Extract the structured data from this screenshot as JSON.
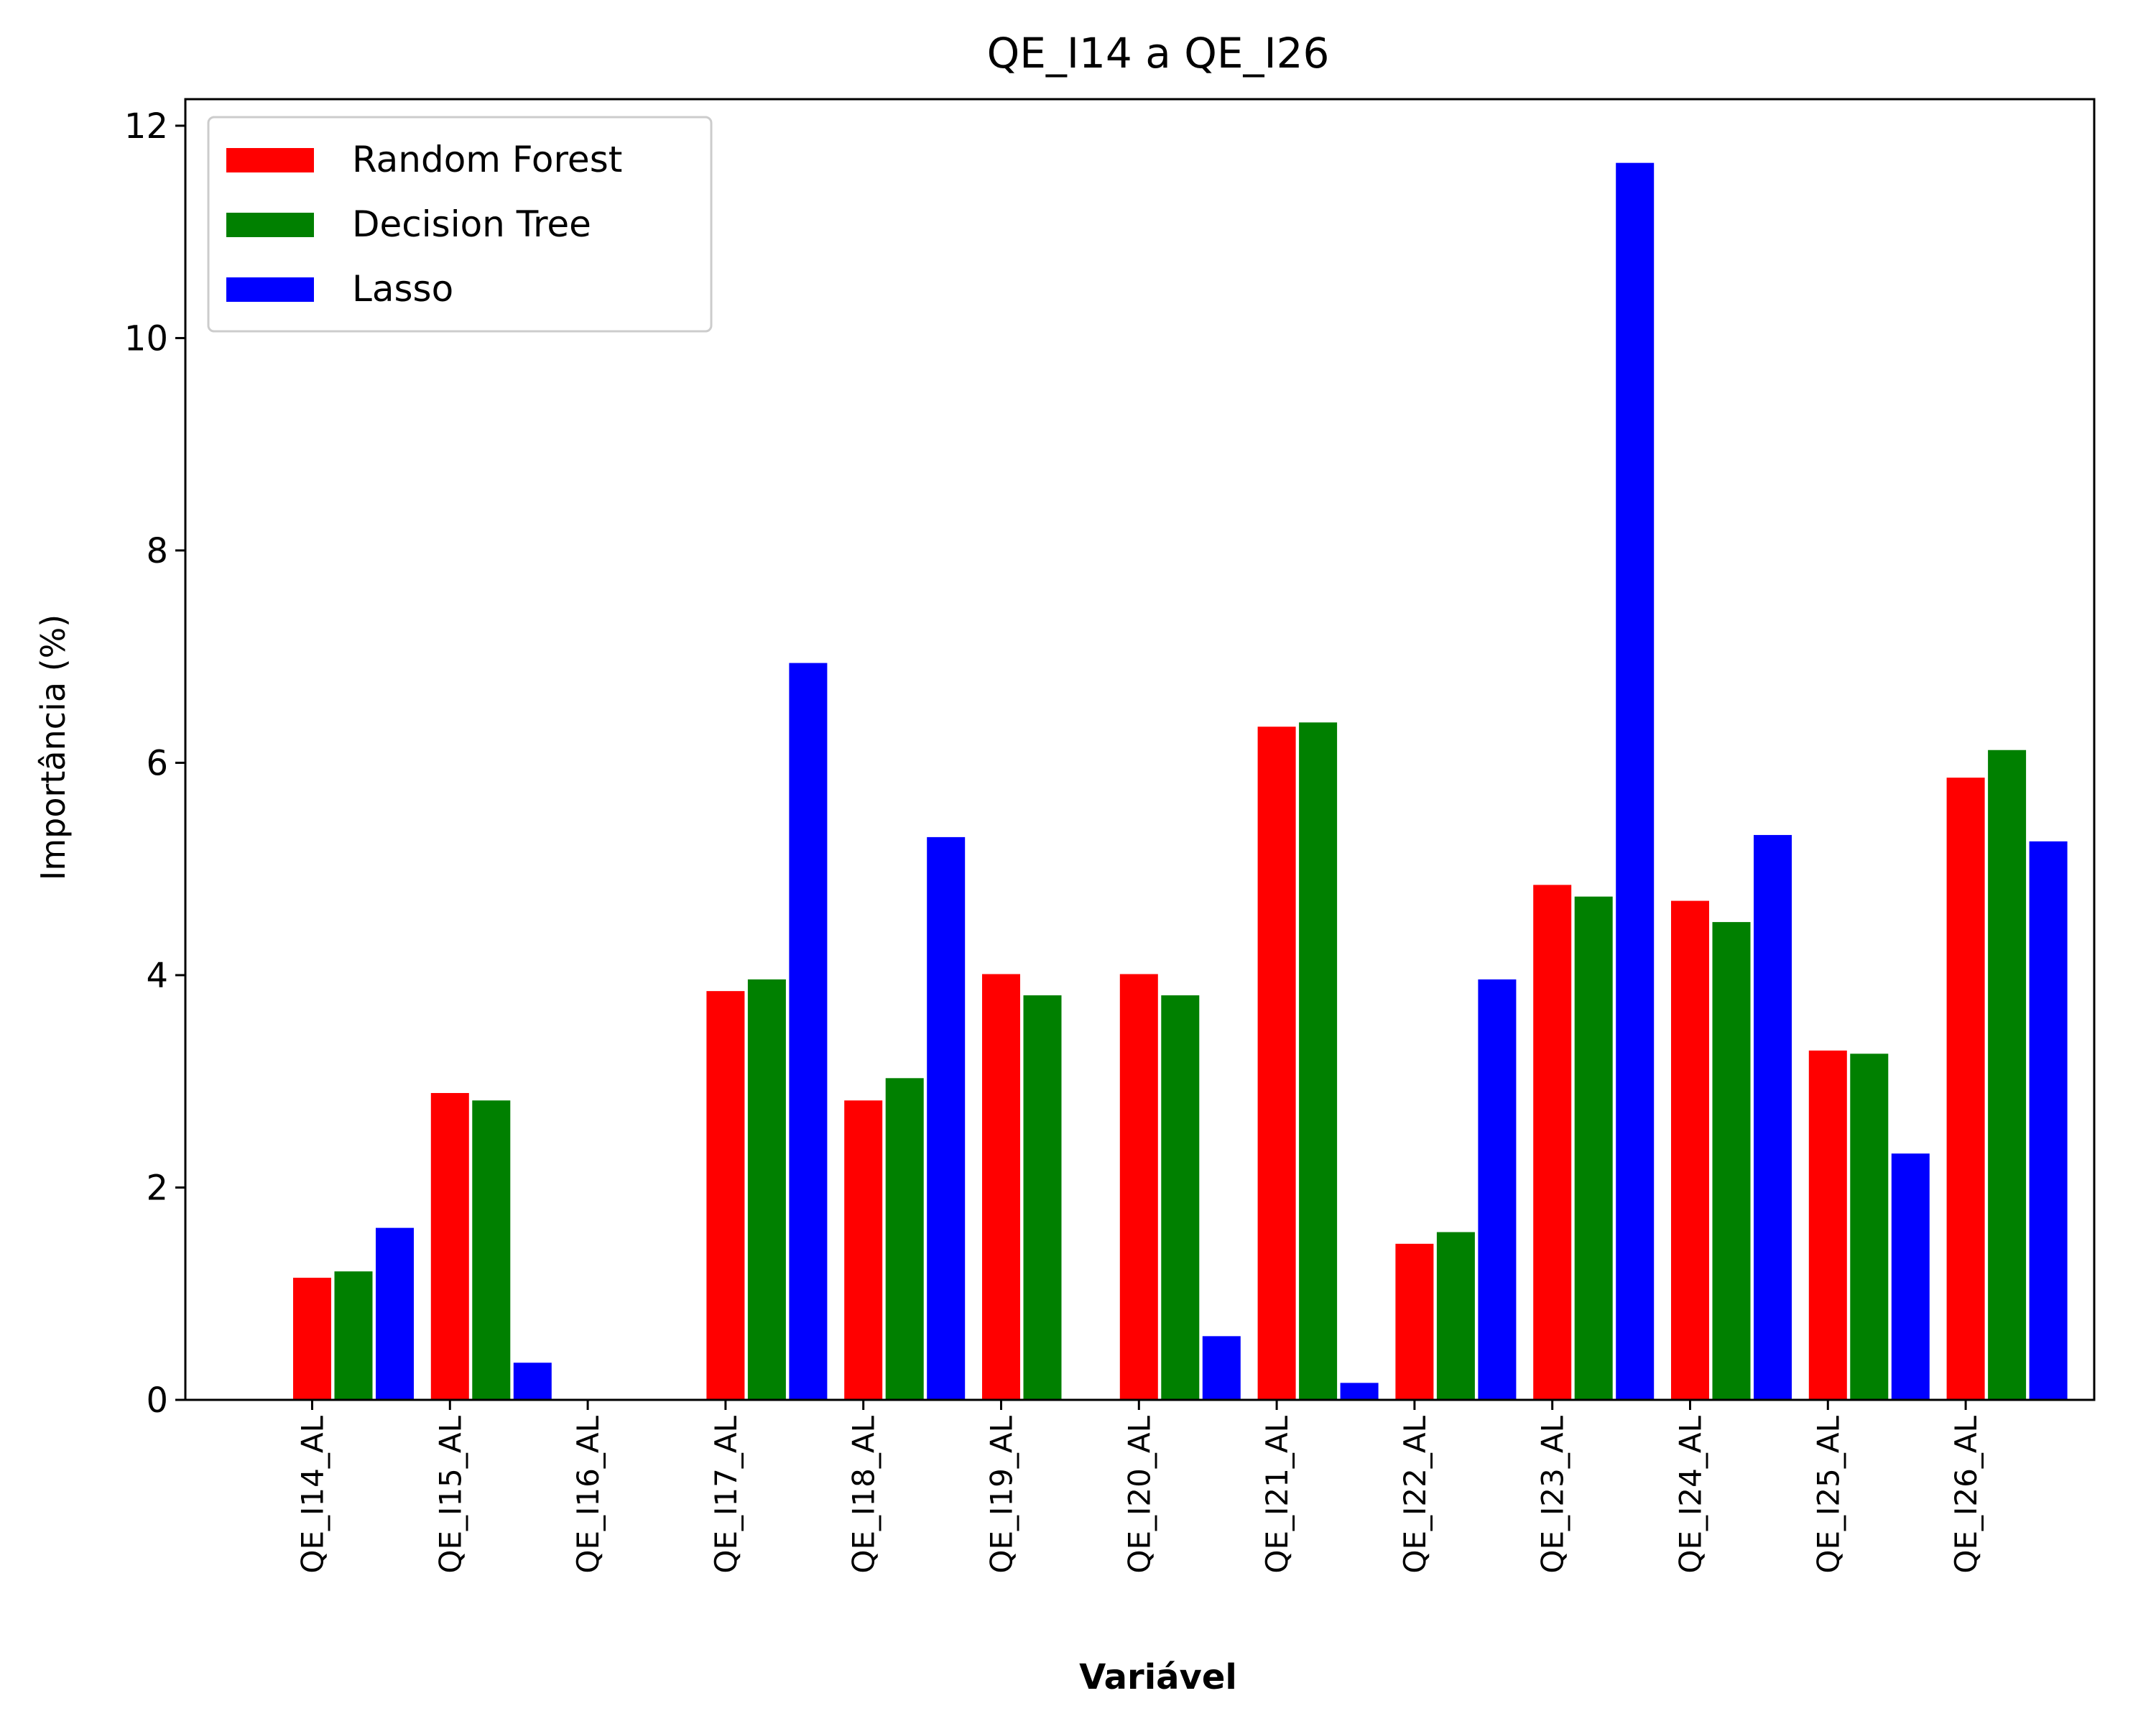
{
  "chart_data": {
    "type": "bar",
    "title": "QE_I14 a QE_I26",
    "xlabel": "Variável",
    "ylabel": "Importância (%)",
    "categories": [
      "QE_I14_AL",
      "QE_I15_AL",
      "QE_I16_AL",
      "QE_I17_AL",
      "QE_I18_AL",
      "QE_I19_AL",
      "QE_I20_AL",
      "QE_I21_AL",
      "QE_I22_AL",
      "QE_I23_AL",
      "QE_I24_AL",
      "QE_I25_AL",
      "QE_I26_AL"
    ],
    "series": [
      {
        "name": "Random Forest",
        "color": "#ff0000",
        "values": [
          1.15,
          2.89,
          0,
          3.85,
          2.82,
          4.01,
          4.01,
          6.34,
          1.47,
          4.85,
          4.7,
          3.29,
          5.86
        ]
      },
      {
        "name": "Decision Tree",
        "color": "#008000",
        "values": [
          1.21,
          2.82,
          0,
          3.96,
          3.03,
          3.81,
          3.81,
          6.38,
          1.58,
          4.74,
          4.5,
          3.26,
          6.12
        ]
      },
      {
        "name": "Lasso",
        "color": "#0000ff",
        "values": [
          1.62,
          0.35,
          0,
          6.94,
          5.3,
          0,
          0.6,
          0.16,
          3.96,
          11.65,
          5.32,
          2.32,
          5.26
        ]
      }
    ],
    "yticks": [
      "0",
      "2",
      "4",
      "6",
      "8",
      "10",
      "12"
    ],
    "ylim": [
      0,
      12.25
    ],
    "legend_position": "top-left",
    "grid": false
  }
}
